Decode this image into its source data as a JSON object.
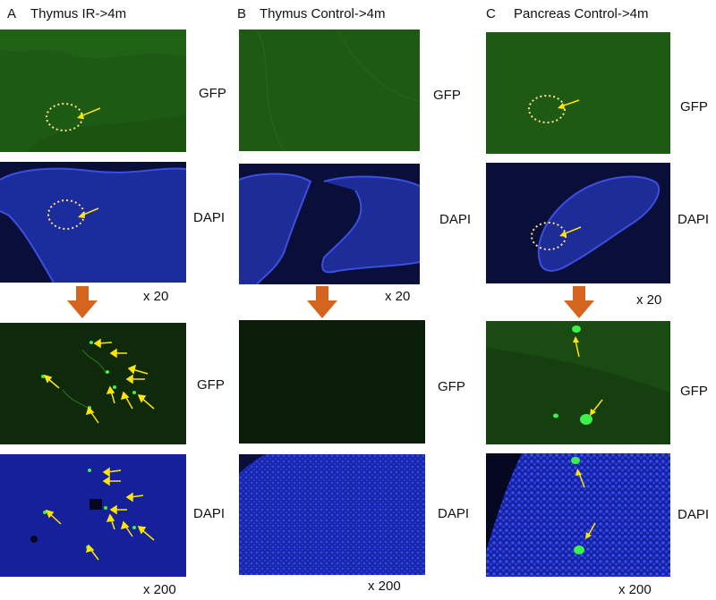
{
  "headers": {
    "A": {
      "letter": "A",
      "title": "Thymus IR->4m"
    },
    "B": {
      "letter": "B",
      "title": "Thymus Control->4m"
    },
    "C": {
      "letter": "C",
      "title": "Pancreas Control->4m"
    }
  },
  "channels": {
    "gfp": "GFP",
    "dapi": "DAPI"
  },
  "magnifications": {
    "low": "x 20",
    "high": "x 200"
  },
  "colors": {
    "gfp_background": "#1f5a14",
    "dapi_background": "#0c1460",
    "annotation_arrow": "#ffe600",
    "circle": "#ffe08a",
    "transition_arrow": "#d4641e",
    "cell_signal": "#3df04a"
  }
}
